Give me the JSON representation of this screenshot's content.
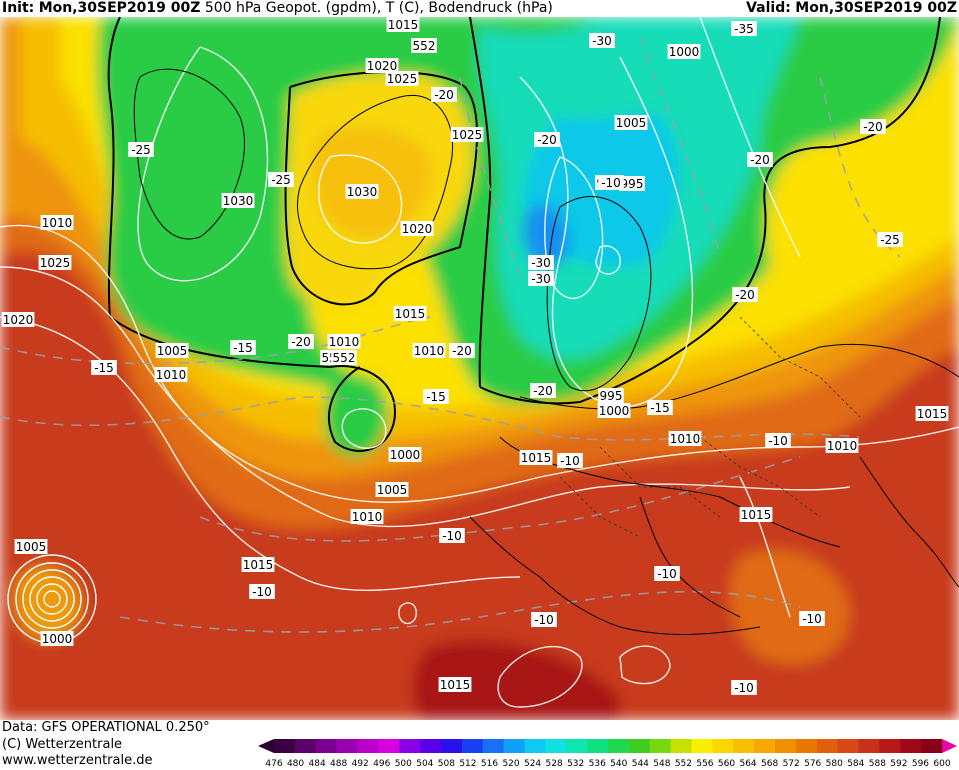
{
  "header": {
    "init_label": "Init:",
    "init_time": "Mon,30SEP2019 00Z",
    "product": "500 hPa Geopot. (gpdm), T (C), Bodendruck (hPa)",
    "valid_label": "Valid:",
    "valid_time": "Mon,30SEP2019 00Z"
  },
  "footer": {
    "data_source": "Data: GFS OPERATIONAL 0.250°",
    "copyright": "(C) Wetterzentrale",
    "url": "www.wetterzentrale.de"
  },
  "legend": {
    "ticks": [
      "476",
      "480",
      "484",
      "488",
      "492",
      "496",
      "500",
      "504",
      "508",
      "512",
      "516",
      "520",
      "524",
      "528",
      "532",
      "536",
      "540",
      "544",
      "548",
      "552",
      "556",
      "560",
      "564",
      "568",
      "572",
      "576",
      "580",
      "584",
      "588",
      "592",
      "596",
      "600"
    ],
    "colors": [
      "#3a0040",
      "#5a0068",
      "#7a0090",
      "#9a00b0",
      "#bb00cc",
      "#d600e0",
      "#8a00e6",
      "#5a00e8",
      "#2a10ec",
      "#1840f0",
      "#1870f4",
      "#10a0f8",
      "#10c8f4",
      "#10e0e0",
      "#10e4b0",
      "#10e080",
      "#20d850",
      "#40cc20",
      "#78d810",
      "#c8e000",
      "#f8f000",
      "#f8d800",
      "#f8c000",
      "#f8a800",
      "#f09000",
      "#e87800",
      "#e06010",
      "#d84818",
      "#c83018",
      "#b81818",
      "#a00818",
      "#880018"
    ]
  },
  "map": {
    "pressure_labels": [
      "1015",
      "552",
      "1020",
      "1025",
      "1025",
      "1030",
      "1030",
      "1010",
      "1020",
      "1025",
      "1020",
      "1015",
      "1005",
      "1010",
      "1010",
      "552",
      "552",
      "1000",
      "1005",
      "1010",
      "1015",
      "1015",
      "1010",
      "1000",
      "1005",
      "995",
      "990",
      "995",
      "1000",
      "1010",
      "1015",
      "1015",
      "1010",
      "1015",
      "1005",
      "1000"
    ],
    "temp_labels": [
      "-35",
      "-30",
      "-20",
      "-25",
      "-25",
      "-30",
      "-30",
      "-20",
      "-20",
      "-20",
      "-25",
      "-20",
      "-20",
      "-15",
      "-20",
      "-15",
      "-20",
      "-15",
      "-15",
      "-10",
      "-10",
      "-10",
      "-10",
      "-10",
      "-10",
      "-10",
      "-10",
      "-10"
    ]
  }
}
